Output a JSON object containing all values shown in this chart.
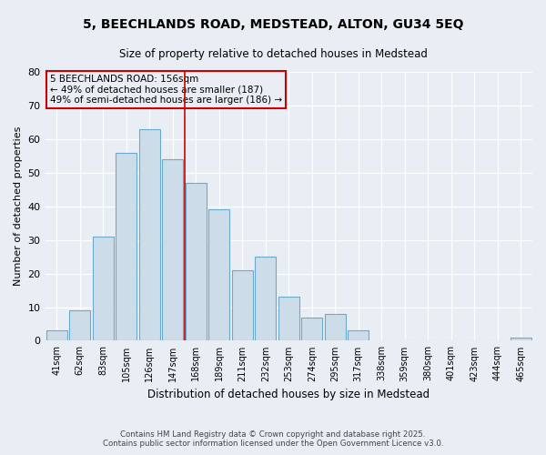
{
  "title": "5, BEECHLANDS ROAD, MEDSTEAD, ALTON, GU34 5EQ",
  "subtitle": "Size of property relative to detached houses in Medstead",
  "xlabel": "Distribution of detached houses by size in Medstead",
  "ylabel": "Number of detached properties",
  "bar_labels": [
    "41sqm",
    "62sqm",
    "83sqm",
    "105sqm",
    "126sqm",
    "147sqm",
    "168sqm",
    "189sqm",
    "211sqm",
    "232sqm",
    "253sqm",
    "274sqm",
    "295sqm",
    "317sqm",
    "338sqm",
    "359sqm",
    "380sqm",
    "401sqm",
    "423sqm",
    "444sqm",
    "465sqm"
  ],
  "bar_values": [
    3,
    9,
    31,
    56,
    63,
    54,
    47,
    39,
    21,
    25,
    13,
    7,
    8,
    3,
    0,
    0,
    0,
    0,
    0,
    0,
    1
  ],
  "bar_color": "#ccdce8",
  "bar_edgecolor": "#6aaace",
  "ylim": [
    0,
    80
  ],
  "yticks": [
    0,
    10,
    20,
    30,
    40,
    50,
    60,
    70,
    80
  ],
  "vline_color": "#cc0000",
  "annotation_text": "5 BEECHLANDS ROAD: 156sqm\n← 49% of detached houses are smaller (187)\n49% of semi-detached houses are larger (186) →",
  "annotation_box_edgecolor": "#cc0000",
  "footer_line1": "Contains HM Land Registry data © Crown copyright and database right 2025.",
  "footer_line2": "Contains public sector information licensed under the Open Government Licence v3.0.",
  "bg_color": "#e8eef4",
  "grid_color": "#ffffff"
}
